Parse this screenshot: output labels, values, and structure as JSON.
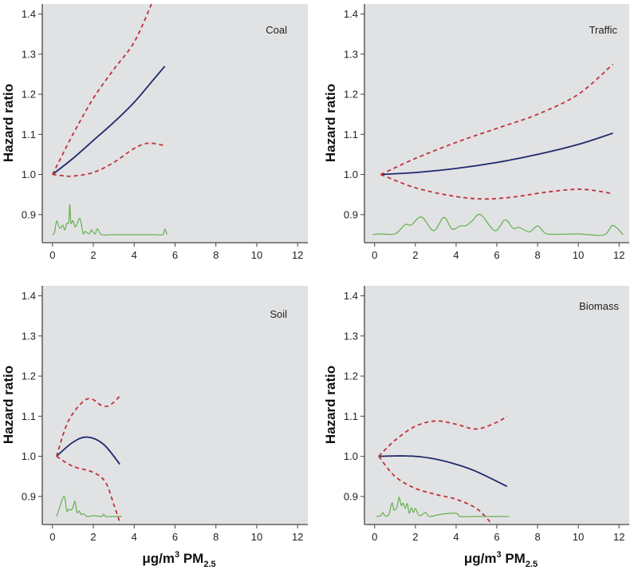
{
  "colors": {
    "panel_bg": "#e1e2e4",
    "hazard_ratio": "#1f2a6b",
    "confidence_interval": "#c0323a",
    "density": "#5aac44",
    "axis": "#444444"
  },
  "chart_data": [
    {
      "type": "line",
      "panel_label": "Coal",
      "ylabel": "Hazard ratio",
      "xlabel": "",
      "xticks": [
        "0",
        "2",
        "4",
        "6",
        "8",
        "10",
        "12"
      ],
      "yticks": [
        "0.9",
        "1.0",
        "1.1",
        "1.2",
        "1.3",
        "1.4"
      ],
      "xlim": [
        -0.5,
        12.5
      ],
      "ylim": [
        0.83,
        1.425
      ],
      "series": [
        {
          "name": "hazard ratio",
          "x": [
            0,
            1,
            2,
            3,
            4,
            5,
            5.5
          ],
          "y": [
            1.0,
            1.04,
            1.085,
            1.13,
            1.18,
            1.24,
            1.27
          ]
        },
        {
          "name": "upper 95% CI",
          "x": [
            0,
            1,
            2,
            3,
            4,
            4.85
          ],
          "y": [
            1.0,
            1.1,
            1.19,
            1.262,
            1.33,
            1.425
          ]
        },
        {
          "name": "lower 95% CI",
          "x": [
            0,
            0.5,
            1,
            2,
            3,
            4,
            4.7,
            5.5
          ],
          "y": [
            1.0,
            0.997,
            0.996,
            1.005,
            1.03,
            1.065,
            1.078,
            1.072
          ]
        },
        {
          "name": "exposure density",
          "x": [
            0,
            0.1,
            0.2,
            0.3,
            0.4,
            0.5,
            0.6,
            0.7,
            0.8,
            0.85,
            0.9,
            1.0,
            1.1,
            1.2,
            1.35,
            1.5,
            1.6,
            1.8,
            1.9,
            2.0,
            2.1,
            2.2,
            2.4,
            3,
            4,
            5,
            5.4,
            5.5,
            5.6
          ],
          "y": [
            0.85,
            0.856,
            0.884,
            0.872,
            0.866,
            0.874,
            0.862,
            0.878,
            0.882,
            0.926,
            0.88,
            0.885,
            0.87,
            0.876,
            0.89,
            0.853,
            0.858,
            0.852,
            0.862,
            0.856,
            0.852,
            0.865,
            0.85,
            0.85,
            0.85,
            0.85,
            0.85,
            0.864,
            0.85
          ]
        }
      ]
    },
    {
      "type": "line",
      "panel_label": "Traffic",
      "ylabel": "Hazard ratio",
      "xlabel": "",
      "xticks": [
        "0",
        "2",
        "4",
        "6",
        "8",
        "10",
        "12"
      ],
      "yticks": [
        "0.9",
        "1.0",
        "1.1",
        "1.2",
        "1.3",
        "1.4"
      ],
      "xlim": [
        -0.5,
        12.5
      ],
      "ylim": [
        0.83,
        1.425
      ],
      "series": [
        {
          "name": "hazard ratio",
          "x": [
            0.3,
            2,
            4,
            6,
            8,
            10,
            11.7
          ],
          "y": [
            1.0,
            1.005,
            1.015,
            1.03,
            1.05,
            1.075,
            1.103
          ]
        },
        {
          "name": "upper 95% CI",
          "x": [
            0.3,
            2,
            4,
            6,
            8,
            10,
            11.7
          ],
          "y": [
            1.0,
            1.04,
            1.08,
            1.115,
            1.15,
            1.2,
            1.275
          ]
        },
        {
          "name": "lower 95% CI",
          "x": [
            0.3,
            2,
            4,
            5.5,
            7,
            8,
            9.5,
            10.5,
            11.7
          ],
          "y": [
            1.0,
            0.967,
            0.945,
            0.939,
            0.945,
            0.953,
            0.962,
            0.962,
            0.952
          ]
        },
        {
          "name": "exposure density",
          "x": [
            -0.1,
            0.3,
            1,
            1.5,
            1.8,
            2.3,
            2.9,
            3.4,
            3.8,
            4.2,
            4.5,
            4.8,
            5.2,
            5.9,
            6.4,
            6.8,
            7.1,
            7.6,
            8,
            8.4,
            9,
            10,
            10.5,
            11.3,
            11.7,
            12.2
          ],
          "y": [
            0.85,
            0.852,
            0.852,
            0.875,
            0.874,
            0.894,
            0.86,
            0.893,
            0.864,
            0.872,
            0.873,
            0.885,
            0.9,
            0.86,
            0.887,
            0.866,
            0.868,
            0.857,
            0.872,
            0.853,
            0.851,
            0.852,
            0.85,
            0.85,
            0.873,
            0.85
          ]
        }
      ]
    },
    {
      "type": "line",
      "panel_label": "Soil",
      "ylabel": "Hazard ratio",
      "xlabel": "μg/m3 PM2.5",
      "xlabel_parts": {
        "base": "μg/m",
        "sup": "3",
        "mid": " PM",
        "sub": "2.5"
      },
      "xticks": [
        "0",
        "2",
        "4",
        "6",
        "8",
        "10",
        "12"
      ],
      "yticks": [
        "0.9",
        "1.0",
        "1.1",
        "1.2",
        "1.3",
        "1.4"
      ],
      "xlim": [
        -0.5,
        12.5
      ],
      "ylim": [
        0.83,
        1.425
      ],
      "series": [
        {
          "name": "hazard ratio",
          "x": [
            0.2,
            1,
            1.7,
            2.5,
            3.3
          ],
          "y": [
            1.0,
            1.035,
            1.048,
            1.03,
            0.98
          ]
        },
        {
          "name": "upper 95% CI",
          "x": [
            0.2,
            0.8,
            1.7,
            2.4,
            2.8,
            3.3
          ],
          "y": [
            1.0,
            1.09,
            1.143,
            1.127,
            1.127,
            1.15
          ]
        },
        {
          "name": "lower 95% CI",
          "x": [
            0.2,
            1,
            2,
            2.6,
            3.0,
            3.3
          ],
          "y": [
            1.0,
            0.975,
            0.96,
            0.935,
            0.88,
            0.835
          ]
        },
        {
          "name": "exposure density",
          "x": [
            0.2,
            0.35,
            0.5,
            0.6,
            0.7,
            0.8,
            0.9,
            1.0,
            1.1,
            1.2,
            1.3,
            1.4,
            1.5,
            1.7,
            2.0,
            2.4,
            2.5,
            2.6,
            3.0,
            3.4
          ],
          "y": [
            0.85,
            0.873,
            0.895,
            0.897,
            0.864,
            0.868,
            0.866,
            0.872,
            0.888,
            0.86,
            0.864,
            0.855,
            0.857,
            0.85,
            0.852,
            0.85,
            0.856,
            0.85,
            0.85,
            0.85
          ]
        }
      ]
    },
    {
      "type": "line",
      "panel_label": "Biomass",
      "ylabel": "Hazard ratio",
      "xlabel": "μg/m3 PM2.5",
      "xlabel_parts": {
        "base": "μg/m",
        "sup": "3",
        "mid": " PM",
        "sub": "2.5"
      },
      "xticks": [
        "0",
        "2",
        "4",
        "6",
        "8",
        "10",
        "12"
      ],
      "yticks": [
        "0.9",
        "1.0",
        "1.1",
        "1.2",
        "1.3",
        "1.4"
      ],
      "xlim": [
        -0.5,
        12.5
      ],
      "ylim": [
        0.83,
        1.425
      ],
      "series": [
        {
          "name": "hazard ratio",
          "x": [
            0.2,
            1,
            2,
            3,
            4,
            5,
            6.5
          ],
          "y": [
            1.0,
            1.001,
            1.0,
            0.993,
            0.98,
            0.962,
            0.925
          ]
        },
        {
          "name": "upper 95% CI",
          "x": [
            0.2,
            1,
            2,
            3,
            4,
            5,
            6,
            6.5
          ],
          "y": [
            1.0,
            1.04,
            1.075,
            1.088,
            1.08,
            1.068,
            1.085,
            1.1
          ]
        },
        {
          "name": "lower 95% CI",
          "x": [
            0.2,
            1,
            2,
            3,
            4,
            5,
            5.7
          ],
          "y": [
            1.0,
            0.95,
            0.92,
            0.905,
            0.893,
            0.87,
            0.835
          ]
        },
        {
          "name": "exposure density",
          "x": [
            0.1,
            0.3,
            0.4,
            0.5,
            0.7,
            0.85,
            0.95,
            1.1,
            1.2,
            1.3,
            1.4,
            1.5,
            1.6,
            1.7,
            1.8,
            1.9,
            2.0,
            2.2,
            2.5,
            2.7,
            3.3,
            4.0,
            4.2,
            5,
            6.6
          ],
          "y": [
            0.85,
            0.852,
            0.86,
            0.852,
            0.855,
            0.884,
            0.866,
            0.875,
            0.898,
            0.878,
            0.883,
            0.87,
            0.882,
            0.858,
            0.872,
            0.86,
            0.87,
            0.852,
            0.86,
            0.85,
            0.856,
            0.858,
            0.85,
            0.85,
            0.85
          ]
        }
      ]
    }
  ]
}
